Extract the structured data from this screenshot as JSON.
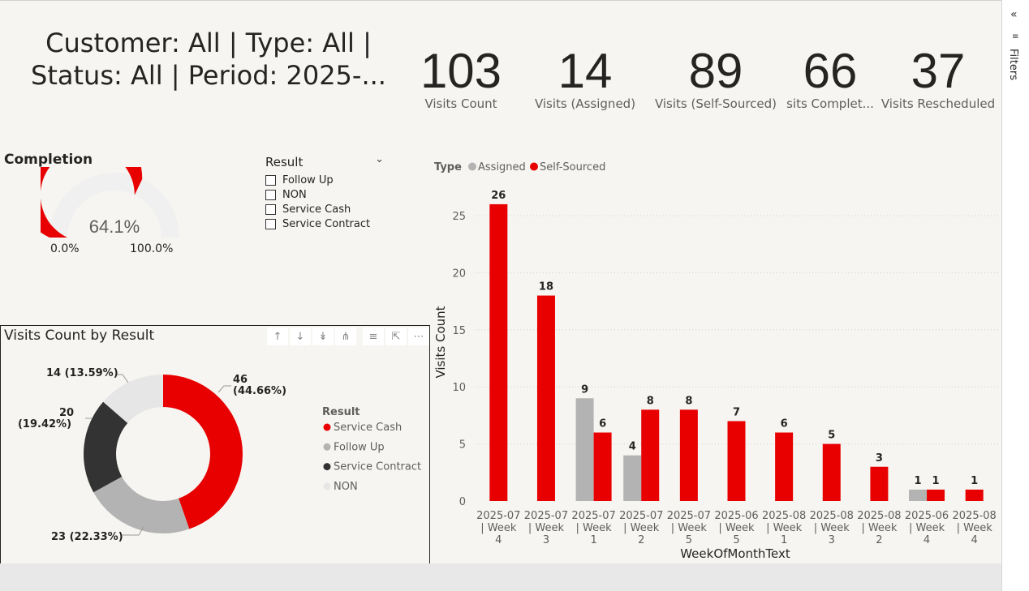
{
  "header": {
    "title_line1": "Customer: All | Type: All |",
    "title_line2": "Status: All | Period: 2025-..."
  },
  "kpis": [
    {
      "value": "103",
      "label": "Visits Count"
    },
    {
      "value": "14",
      "label": "Visits (Assigned)"
    },
    {
      "value": "89",
      "label": "Visits (Self-Sourced)"
    },
    {
      "value": "66",
      "label": "sits Complet..."
    },
    {
      "value": "37",
      "label": "Visits Rescheduled"
    }
  ],
  "gauge": {
    "title": "Completion",
    "value_label": "64.1%",
    "value": 0.641,
    "min_label": "0.0%",
    "max_label": "100.0%",
    "fill_color": "#e80000",
    "track_color": "#f0f0f0"
  },
  "slicer": {
    "title": "Result",
    "items": [
      "Follow Up",
      "NON",
      "Service Cash",
      "Service Contract"
    ]
  },
  "donut": {
    "title": "Visits Count by Result",
    "toolbar_icons": [
      "arrow-up-icon",
      "arrow-down-icon",
      "double-arrow-down-icon",
      "fork-icon",
      "filter-icon",
      "focus-icon",
      "more-icon"
    ],
    "legend_title": "Result"
  },
  "bar_chart": {
    "legend_title": "Type",
    "xlabel": "WeekOfMonthText",
    "ylabel": "Visits Count"
  },
  "filters_pane": {
    "label": "Filters"
  },
  "chart_data": [
    {
      "type": "pie",
      "title": "Visits Count by Result",
      "categories": [
        "Service Cash",
        "Follow Up",
        "Service Contract",
        "NON"
      ],
      "values": [
        46,
        23,
        20,
        14
      ],
      "labels": [
        "46 (44.66%)",
        "23 (22.33%)",
        "20 (19.42%)",
        "14 (13.59%)"
      ],
      "colors": [
        "#e80000",
        "#b3b3b3",
        "#333333",
        "#e6e6e6"
      ],
      "legend": "right"
    },
    {
      "type": "bar",
      "categories": [
        "2025-07 | Week 4",
        "2025-07 | Week 3",
        "2025-07 | Week 1",
        "2025-07 | Week 2",
        "2025-07 | Week 5",
        "2025-06 | Week 5",
        "2025-08 | Week 1",
        "2025-08 | Week 3",
        "2025-08 | Week 2",
        "2025-06 | Week 4",
        "2025-08 | Week 4"
      ],
      "category_lines": [
        [
          "2025-07",
          "| Week",
          "4"
        ],
        [
          "2025-07",
          "| Week",
          "3"
        ],
        [
          "2025-07",
          "| Week",
          "1"
        ],
        [
          "2025-07",
          "| Week",
          "2"
        ],
        [
          "2025-07",
          "| Week",
          "5"
        ],
        [
          "2025-06",
          "| Week",
          "5"
        ],
        [
          "2025-08",
          "| Week",
          "1"
        ],
        [
          "2025-08",
          "| Week",
          "3"
        ],
        [
          "2025-08",
          "| Week",
          "2"
        ],
        [
          "2025-06",
          "| Week",
          "4"
        ],
        [
          "2025-08",
          "| Week",
          "4"
        ]
      ],
      "series": [
        {
          "name": "Assigned",
          "color": "#b3b3b3",
          "values": [
            null,
            null,
            9,
            4,
            null,
            null,
            null,
            null,
            null,
            1,
            null
          ]
        },
        {
          "name": "Self-Sourced",
          "color": "#e80000",
          "values": [
            26,
            18,
            6,
            8,
            8,
            7,
            6,
            5,
            3,
            1,
            1
          ]
        }
      ],
      "xlabel": "WeekOfMonthText",
      "ylabel": "Visits Count",
      "ylim": [
        0,
        27
      ],
      "yticks": [
        0,
        5,
        10,
        15,
        20,
        25
      ],
      "legend": "top-left",
      "grid": true
    }
  ]
}
